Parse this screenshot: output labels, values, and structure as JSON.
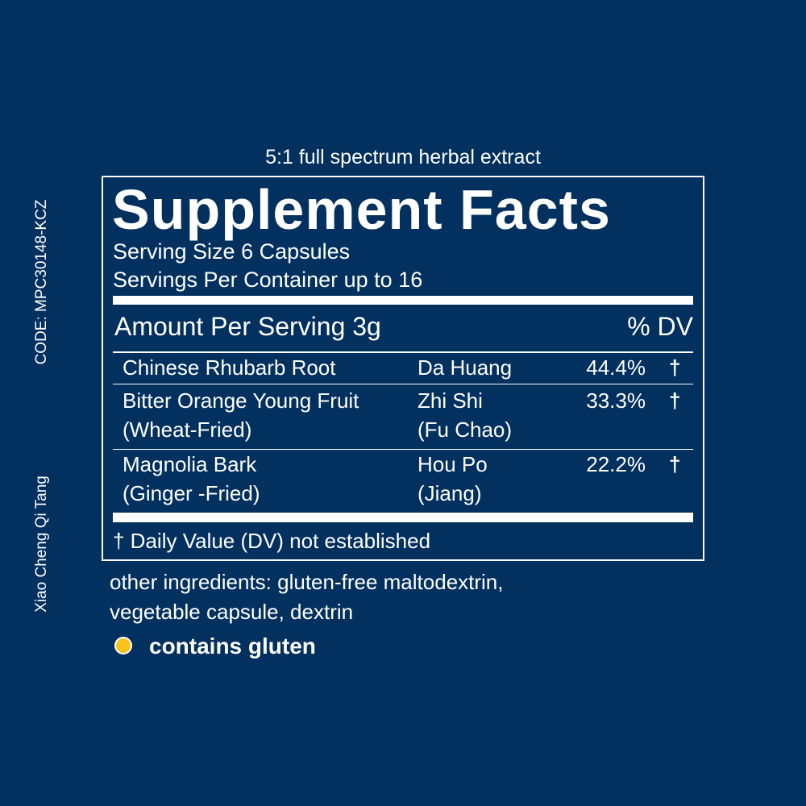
{
  "header": {
    "subtitle": "5:1 full spectrum herbal extract"
  },
  "side": {
    "code": "CODE: MPC30148-KCZ",
    "formula": "Xiao Cheng Qi Tang"
  },
  "facts": {
    "title": "Supplement Facts",
    "serving_size": "Serving Size 6 Capsules",
    "servings_per_container": "Servings Per Container up to 16",
    "amount_per_serving": "Amount Per Serving 3g",
    "dv_header": "% DV",
    "rows": [
      {
        "name": [
          "Chinese Rhubarb Root"
        ],
        "pinyin": [
          "Da Huang"
        ],
        "percent": "44.4%",
        "dv": "†"
      },
      {
        "name": [
          "Bitter Orange Young Fruit",
          "(Wheat-Fried)"
        ],
        "pinyin": [
          "Zhi Shi",
          "(Fu Chao)"
        ],
        "percent": "33.3%",
        "dv": "†"
      },
      {
        "name": [
          "Magnolia Bark",
          "(Ginger -Fried)"
        ],
        "pinyin": [
          "Hou Po",
          "(Jiang)"
        ],
        "percent": "22.2%",
        "dv": "†"
      }
    ],
    "footnote": "† Daily Value (DV) not established"
  },
  "other_ingredients": [
    "other ingredients: gluten-free maltodextrin,",
    "vegetable capsule, dextrin"
  ],
  "allergen": "contains gluten"
}
